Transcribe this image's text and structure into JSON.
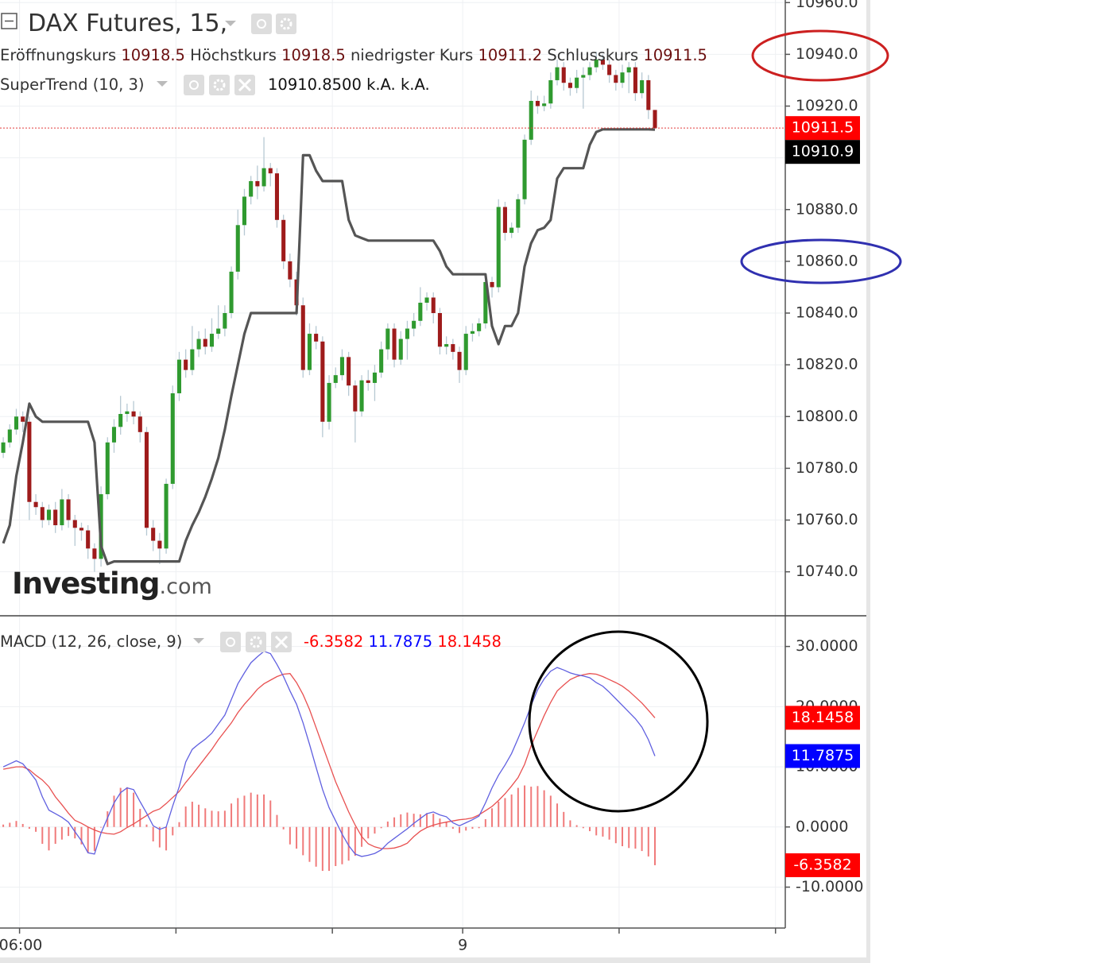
{
  "chart_data": [
    {
      "type": "candlestick",
      "title": "DAX Futures, 15,",
      "ohlc_labels": [
        "Eröffnungskurs",
        "Höchstkurs",
        "niedrigster Kurs",
        "Schlusskurs"
      ],
      "watermark": {
        "brand": "Investing",
        "suffix": ".com"
      },
      "up_color": "#2f9a2f",
      "down_color": "#9e1b1b",
      "wick_color": "#b7c9d3",
      "last_line_color": "#e23b3b",
      "xlim": [
        -0.5,
        120
      ],
      "ylim": [
        10723,
        10961
      ],
      "yticks": [
        {
          "value": 10740,
          "label": "10740.0"
        },
        {
          "value": 10760,
          "label": "10760.0"
        },
        {
          "value": 10780,
          "label": "10780.0"
        },
        {
          "value": 10800,
          "label": "10800.0"
        },
        {
          "value": 10820,
          "label": "10820.0"
        },
        {
          "value": 10840,
          "label": "10840.0"
        },
        {
          "value": 10860,
          "label": "10860.0"
        },
        {
          "value": 10880,
          "label": "10880.0"
        },
        {
          "value": 10900,
          "label": "10900.0"
        },
        {
          "value": 10920,
          "label": "10920.0"
        },
        {
          "value": 10940,
          "label": "10940.0"
        },
        {
          "value": 10960,
          "label": "10960.0"
        }
      ],
      "grid": true,
      "open": [
        10786,
        10790,
        10795,
        10800,
        10798,
        10767,
        10765,
        10760,
        10764,
        10758,
        10768,
        10760,
        10757,
        10756,
        10749,
        10745,
        10770,
        10790,
        10796,
        10801,
        10802,
        10800,
        10794,
        10757,
        10752,
        10749,
        10774,
        10809,
        10822,
        10818,
        10826,
        10830,
        10827,
        10832,
        10834,
        10840,
        10856,
        10874,
        10885,
        10891,
        10889,
        10896,
        10894,
        10876,
        10860,
        10853,
        10843,
        10818,
        10832,
        10829,
        10798,
        10813,
        10816,
        10823,
        10812,
        10802,
        10814,
        10813,
        10817,
        10826,
        10834,
        10822,
        10830,
        10834,
        10837,
        10844,
        10846,
        10840,
        10827,
        10828,
        10825,
        10818,
        10832,
        10833,
        10836,
        10852,
        10850,
        10881,
        10871,
        10873,
        10884,
        10907,
        10922,
        10920,
        10921,
        10930,
        10935,
        10929,
        10927,
        10931,
        10932,
        10935,
        10938,
        10936,
        10932,
        10929,
        10933,
        10935,
        10925,
        10930,
        10918.5
      ],
      "high": [
        10792,
        10797,
        10803,
        10802,
        10800,
        10770,
        10767,
        10766,
        10767,
        10772,
        10770,
        10762,
        10759,
        10758,
        10751,
        10773,
        10792,
        10799,
        10808,
        10805,
        10806,
        10802,
        10796,
        10760,
        10755,
        10776,
        10812,
        10825,
        10826,
        10835,
        10833,
        10834,
        10838,
        10843,
        10843,
        10858,
        10880,
        10888,
        10893,
        10897,
        10908,
        10898,
        10896,
        10878,
        10863,
        10856,
        10846,
        10836,
        10835,
        10831,
        10816,
        10819,
        10826,
        10825,
        10814,
        10816,
        10818,
        10820,
        10829,
        10836,
        10836,
        10833,
        10837,
        10840,
        10850,
        10848,
        10848,
        10842,
        10831,
        10830,
        10827,
        10835,
        10836,
        10838,
        10855,
        10854,
        10884,
        10883,
        10875,
        10886,
        10909,
        10926,
        10924,
        10924,
        10933,
        10938,
        10937,
        10931,
        10934,
        10935,
        10937,
        10941,
        10940,
        10938,
        10934,
        10936,
        10937,
        10937,
        10933,
        10932,
        10918.5
      ],
      "low": [
        10784,
        10788,
        10793,
        10794,
        10760,
        10762,
        10757,
        10758,
        10755,
        10756,
        10757,
        10750,
        10752,
        10745,
        10740,
        10742,
        10768,
        10786,
        10793,
        10798,
        10797,
        10790,
        10754,
        10748,
        10743,
        10747,
        10772,
        10806,
        10815,
        10816,
        10823,
        10824,
        10825,
        10830,
        10831,
        10838,
        10853,
        10870,
        10882,
        10884,
        10887,
        10889,
        10873,
        10857,
        10850,
        10839,
        10815,
        10816,
        10826,
        10792,
        10795,
        10811,
        10814,
        10808,
        10790,
        10800,
        10810,
        10806,
        10815,
        10822,
        10819,
        10820,
        10822,
        10831,
        10835,
        10841,
        10836,
        10824,
        10824,
        10822,
        10813,
        10816,
        10829,
        10831,
        10834,
        10846,
        10848,
        10868,
        10869,
        10871,
        10882,
        10905,
        10917,
        10918,
        10919,
        10928,
        10926,
        10924,
        10925,
        10919,
        10930,
        10933,
        10934,
        10929,
        10926,
        10927,
        10925,
        10922,
        10923,
        10915,
        10911.2
      ],
      "close": [
        10790,
        10795,
        10800,
        10798,
        10767,
        10765,
        10760,
        10764,
        10758,
        10768,
        10760,
        10757,
        10756,
        10749,
        10745,
        10770,
        10790,
        10796,
        10801,
        10802,
        10800,
        10794,
        10757,
        10752,
        10749,
        10774,
        10809,
        10822,
        10818,
        10826,
        10830,
        10827,
        10832,
        10834,
        10840,
        10856,
        10874,
        10885,
        10891,
        10889,
        10896,
        10894,
        10876,
        10860,
        10853,
        10843,
        10818,
        10832,
        10829,
        10798,
        10813,
        10816,
        10823,
        10812,
        10802,
        10814,
        10813,
        10817,
        10826,
        10834,
        10822,
        10830,
        10834,
        10837,
        10844,
        10846,
        10840,
        10827,
        10828,
        10825,
        10818,
        10832,
        10833,
        10836,
        10852,
        10850,
        10881,
        10871,
        10873,
        10884,
        10907,
        10922,
        10920,
        10921,
        10930,
        10935,
        10929,
        10927,
        10931,
        10932,
        10935,
        10938,
        10936,
        10932,
        10929,
        10933,
        10935,
        10925,
        10930,
        10918.5,
        10911.5
      ],
      "supertrend": {
        "label": "SuperTrend (10, 3)",
        "current": {
          "value": 10910.85,
          "label": "10910.8500"
        },
        "na_labels": [
          "k.A.",
          "k.A."
        ],
        "color": "#555555",
        "values": [
          10751,
          10758,
          10777,
          10790,
          10805,
          10800,
          10798,
          10798,
          10798,
          10798,
          10798,
          10798,
          10798,
          10798,
          10790,
          10750,
          10743,
          10744,
          10744,
          10744,
          10744,
          10744,
          10744,
          10744,
          10744,
          10744,
          10744,
          10744,
          10752,
          10758,
          10763,
          10769,
          10776,
          10784,
          10795,
          10808,
          10820,
          10832,
          10840,
          10840,
          10840,
          10840,
          10840,
          10840,
          10840,
          10840,
          10901,
          10901,
          10895,
          10891,
          10891,
          10891,
          10891,
          10876,
          10870,
          10869,
          10868,
          10868,
          10868,
          10868,
          10868,
          10868,
          10868,
          10868,
          10868,
          10868,
          10868,
          10864,
          10858,
          10855,
          10855,
          10855,
          10855,
          10855,
          10855,
          10835,
          10828,
          10835,
          10835,
          10840,
          10858,
          10867,
          10872,
          10873,
          10876,
          10892,
          10896,
          10896,
          10896,
          10896,
          10905,
          10910,
          10911,
          10911,
          10911,
          10911,
          10911,
          10911,
          10911,
          10911,
          10910.9
        ]
      }
    },
    {
      "type": "macd",
      "title": "MACD (12, 26, close, 9)",
      "xlim": [
        -0.5,
        120
      ],
      "ylim": [
        -16.8,
        35.1
      ],
      "xticks": [
        {
          "value": 2.5,
          "label": "06:00"
        },
        {
          "value": 26.5,
          "label": null
        },
        {
          "value": 50.5,
          "label": null
        },
        {
          "value": 70.5,
          "label": "9"
        },
        {
          "value": 94.5,
          "label": null
        },
        {
          "value": 118.5,
          "label": null
        }
      ],
      "yticks": [
        {
          "value": 30,
          "label": "30.0000"
        },
        {
          "value": 20,
          "label": "20.0000"
        },
        {
          "value": 10,
          "label": "10.0000"
        },
        {
          "value": 0,
          "label": "0.0000"
        },
        {
          "value": -10,
          "label": "-10.0000"
        }
      ],
      "grid": true,
      "histogram": {
        "color": "#f07a7a",
        "tag_color": "#ff0000",
        "values": [
          0.4,
          0.7,
          1.0,
          0.5,
          -0.3,
          -0.8,
          -2.8,
          -3.9,
          -2.8,
          -2.1,
          -1.5,
          -1.9,
          -2.9,
          -4.3,
          -4.0,
          -0.1,
          2.6,
          5.2,
          6.5,
          6.6,
          5.7,
          3.0,
          0.4,
          -2.4,
          -3.4,
          -3.9,
          -1.4,
          0.8,
          3.4,
          4.2,
          3.7,
          3.1,
          2.7,
          2.6,
          2.7,
          3.9,
          4.8,
          5.2,
          5.7,
          5.4,
          5.4,
          4.4,
          2.0,
          -0.4,
          -2.9,
          -3.6,
          -4.7,
          -5.8,
          -6.6,
          -7.3,
          -7.3,
          -6.5,
          -6.2,
          -5.6,
          -4.8,
          -3.3,
          -1.9,
          -1.1,
          -0.2,
          0.9,
          1.6,
          2.1,
          2.4,
          2.2,
          2.1,
          2.3,
          2.2,
          1.4,
          0.9,
          -0.3,
          -1.0,
          -0.6,
          -0.3,
          -0.2,
          1.3,
          3.1,
          4.2,
          4.8,
          5.4,
          6.5,
          6.9,
          6.7,
          6.8,
          6.1,
          5.2,
          3.9,
          2.5,
          1.1,
          0.3,
          -0.2,
          -0.7,
          -1.4,
          -1.6,
          -2.1,
          -2.7,
          -3.2,
          -3.5,
          -3.6,
          -4.0,
          -4.9,
          -6.3582
        ]
      },
      "macd": {
        "color": "#6060e0",
        "tag_color": "#0000ff",
        "values": [
          10.0,
          10.5,
          11.0,
          10.5,
          9.2,
          7.8,
          5.0,
          2.8,
          2.2,
          1.6,
          0.8,
          -0.8,
          -2.3,
          -4.3,
          -4.5,
          -1.0,
          1.5,
          4.0,
          5.7,
          6.5,
          6.2,
          4.2,
          2.3,
          0.2,
          -0.4,
          0,
          3.5,
          6.7,
          10.8,
          12.9,
          13.8,
          14.6,
          15.6,
          17.1,
          18.6,
          21.2,
          23.8,
          25.6,
          27.3,
          28.3,
          29.2,
          28.8,
          27.0,
          25.0,
          22.6,
          20.4,
          17.3,
          13.7,
          9.9,
          6.2,
          3.2,
          1.0,
          -1.2,
          -3.1,
          -4.5,
          -4.9,
          -4.7,
          -4.4,
          -3.8,
          -2.7,
          -1.9,
          -1.1,
          -0.3,
          0.6,
          1.4,
          2.2,
          2.5,
          2.0,
          1.7,
          0.7,
          0.2,
          0.7,
          1.2,
          1.8,
          4.0,
          6.5,
          8.6,
          10.3,
          12.2,
          14.7,
          17.3,
          20.2,
          22.8,
          24.6,
          25.9,
          26.5,
          26.1,
          25.6,
          25.3,
          25.1,
          24.8,
          24.0,
          23.4,
          22.4,
          21.3,
          20.2,
          19.1,
          18.0,
          16.6,
          14.5,
          11.7875
        ]
      },
      "signal": {
        "color": "#e85050",
        "tag_color": "#ff0000",
        "values": [
          9.6,
          9.8,
          10.0,
          10.0,
          9.5,
          8.6,
          7.8,
          6.7,
          5.0,
          3.7,
          2.3,
          1.1,
          0.6,
          0,
          -0.5,
          -0.9,
          -1.1,
          -1.2,
          -0.8,
          -0.1,
          0.5,
          1.2,
          1.9,
          2.6,
          3.0,
          3.9,
          4.9,
          5.9,
          7.4,
          8.7,
          10.1,
          11.5,
          12.9,
          14.5,
          15.9,
          17.3,
          19.0,
          20.4,
          21.6,
          22.9,
          23.8,
          24.4,
          25.0,
          25.4,
          25.5,
          24.0,
          22.0,
          19.5,
          16.5,
          13.5,
          10.5,
          7.5,
          5.0,
          2.5,
          0.3,
          -1.6,
          -2.8,
          -3.3,
          -3.6,
          -3.6,
          -3.5,
          -3.2,
          -2.7,
          -1.6,
          -0.7,
          -0.1,
          0.3,
          0.6,
          0.8,
          1.0,
          1.2,
          1.3,
          1.5,
          2.0,
          2.7,
          3.4,
          4.4,
          5.5,
          6.8,
          8.2,
          10.4,
          13.5,
          16.0,
          18.5,
          20.7,
          22.6,
          23.6,
          24.5,
          25.0,
          25.3,
          25.5,
          25.4,
          25.0,
          24.5,
          24.0,
          23.4,
          22.6,
          21.6,
          20.6,
          19.4,
          18.1458
        ]
      }
    }
  ]
}
